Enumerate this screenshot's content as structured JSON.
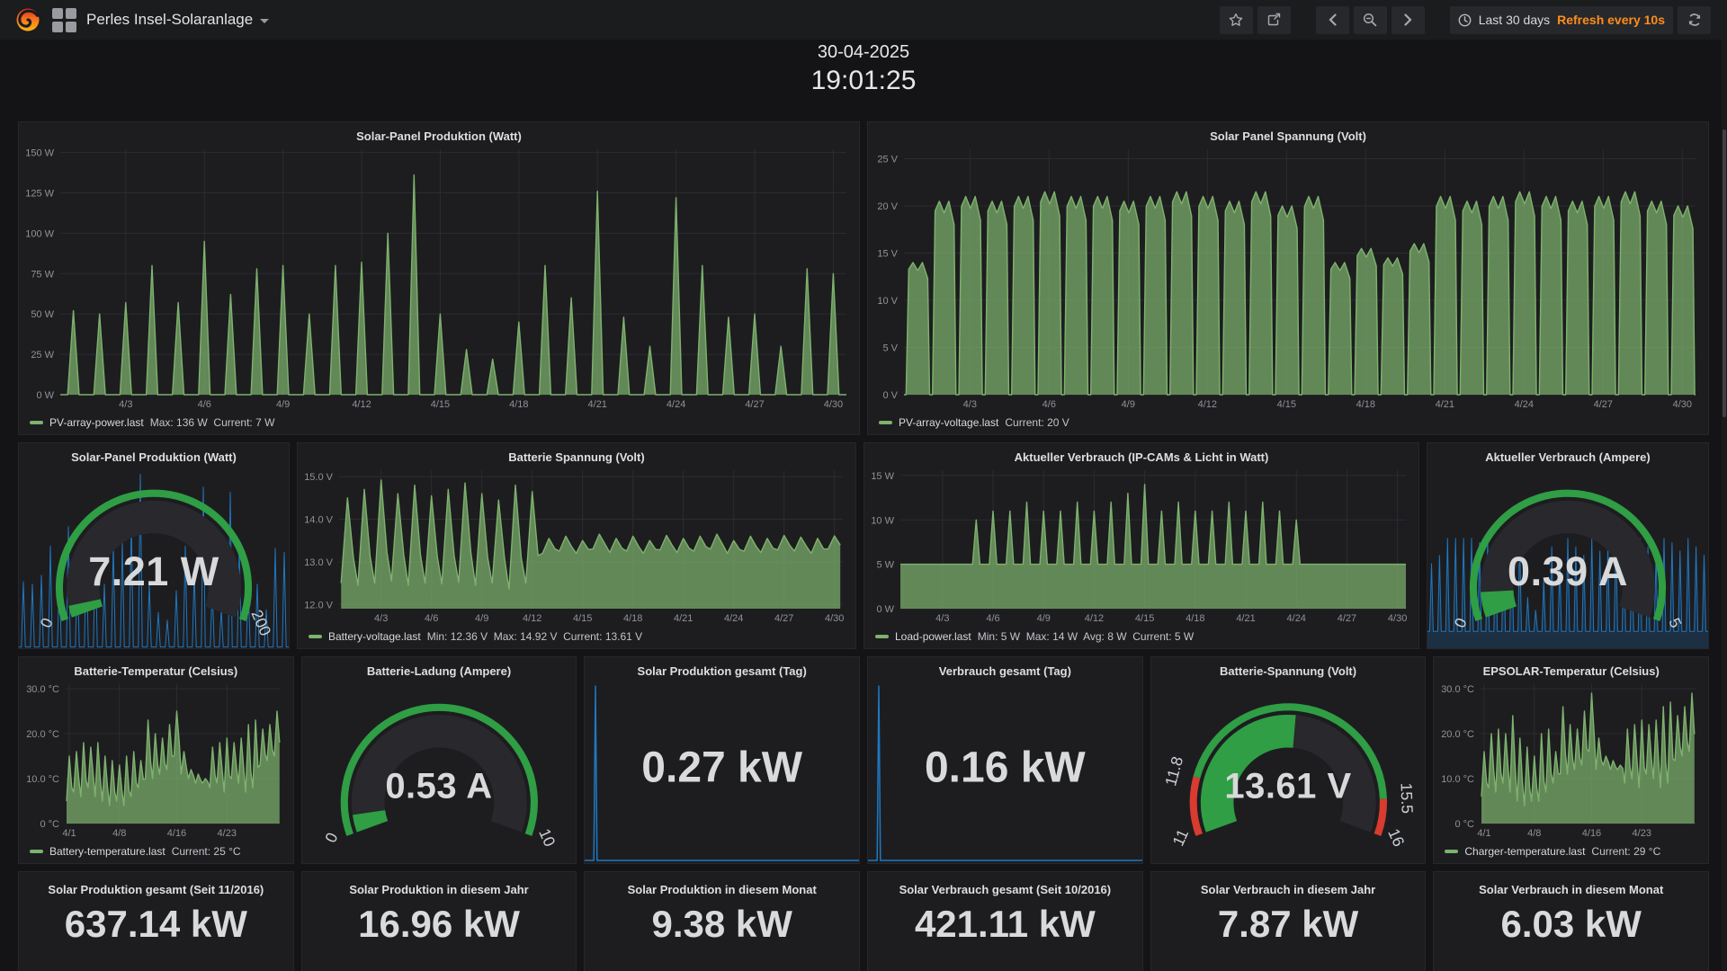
{
  "navbar": {
    "title": "Perles Insel-Solaranlage",
    "time_range": "Last 30 days",
    "refresh_text": "Refresh every 10s",
    "accent_orange": "#ff8d1e"
  },
  "clock": {
    "date": "30-04-2025",
    "time": "19:01:25"
  },
  "colors": {
    "green_line": "#7eb26d",
    "green_fill": "rgba(126,178,109,0.72)",
    "blue": "#1f78c1",
    "gauge_green": "#2f9e44",
    "threshold_red": "#d83b2f"
  },
  "chart_data": {
    "solar_power": {
      "type": "area",
      "title": "Solar-Panel Produktion (Watt)",
      "axis_width": 46,
      "xlim": [
        0,
        30
      ],
      "ylim": [
        0,
        152
      ],
      "yticks": [
        {
          "v": 0,
          "label": "0 W"
        },
        {
          "v": 25,
          "label": "25 W"
        },
        {
          "v": 50,
          "label": "50 W"
        },
        {
          "v": 75,
          "label": "75 W"
        },
        {
          "v": 100,
          "label": "100 W"
        },
        {
          "v": 125,
          "label": "125 W"
        },
        {
          "v": 150,
          "label": "150 W"
        }
      ],
      "xticks": [
        {
          "v": 2.5,
          "label": "4/3"
        },
        {
          "v": 5.5,
          "label": "4/6"
        },
        {
          "v": 8.5,
          "label": "4/9"
        },
        {
          "v": 11.5,
          "label": "4/12"
        },
        {
          "v": 14.5,
          "label": "4/15"
        },
        {
          "v": 17.5,
          "label": "4/18"
        },
        {
          "v": 20.5,
          "label": "4/21"
        },
        {
          "v": 23.5,
          "label": "4/24"
        },
        {
          "v": 26.5,
          "label": "4/27"
        },
        {
          "v": 29.5,
          "label": "4/30"
        }
      ],
      "series": [
        {
          "mode": "spikes",
          "baseline": 0,
          "color": "#7eb26d",
          "fill": "rgba(126,178,109,0.72)",
          "daily_peaks": [
            52,
            50,
            57,
            80,
            57,
            95,
            62,
            78,
            80,
            50,
            80,
            82,
            100,
            136,
            50,
            28,
            22,
            45,
            80,
            60,
            126,
            48,
            30,
            122,
            80,
            48,
            50,
            30,
            78,
            75
          ]
        }
      ],
      "legend": {
        "name": "PV-array-power.last",
        "stats": "Max: 136 W  Current: 7 W"
      }
    },
    "solar_voltage": {
      "type": "area",
      "title": "Solar Panel Spannung (Volt)",
      "axis_width": 40,
      "xlim": [
        0,
        30
      ],
      "ylim": [
        0,
        26
      ],
      "yticks": [
        {
          "v": 0,
          "label": "0 V"
        },
        {
          "v": 5,
          "label": "5 V"
        },
        {
          "v": 10,
          "label": "10 V"
        },
        {
          "v": 15,
          "label": "15 V"
        },
        {
          "v": 20,
          "label": "20 V"
        },
        {
          "v": 25,
          "label": "25 V"
        }
      ],
      "xticks": [
        {
          "v": 2.5,
          "label": "4/3"
        },
        {
          "v": 5.5,
          "label": "4/6"
        },
        {
          "v": 8.5,
          "label": "4/9"
        },
        {
          "v": 11.5,
          "label": "4/12"
        },
        {
          "v": 14.5,
          "label": "4/15"
        },
        {
          "v": 17.5,
          "label": "4/18"
        },
        {
          "v": 20.5,
          "label": "4/21"
        },
        {
          "v": 23.5,
          "label": "4/24"
        },
        {
          "v": 26.5,
          "label": "4/27"
        },
        {
          "v": 29.5,
          "label": "4/30"
        }
      ],
      "series": [
        {
          "mode": "blocks",
          "baseline": 0,
          "color": "#7eb26d",
          "fill": "rgba(126,178,109,0.72)",
          "daily_peaks": [
            14,
            20.5,
            21,
            20.5,
            21,
            21.5,
            21,
            21,
            20.5,
            21,
            21.5,
            21,
            20.5,
            21.5,
            20,
            21,
            14,
            15.5,
            14.5,
            16,
            21,
            20.5,
            21,
            21.5,
            21,
            20.5,
            21,
            21.5,
            20.5,
            20
          ]
        }
      ],
      "legend": {
        "name": "PV-array-voltage.last",
        "stats": "Current: 20 V"
      }
    },
    "battery_voltage": {
      "type": "area",
      "title": "Batterie Spannung (Volt)",
      "axis_width": 46,
      "xlim": [
        0,
        30
      ],
      "ylim": [
        11.9,
        15.15
      ],
      "yticks": [
        {
          "v": 12,
          "label": "12.0 V"
        },
        {
          "v": 13,
          "label": "13.0 V"
        },
        {
          "v": 14,
          "label": "14.0 V"
        },
        {
          "v": 15,
          "label": "15.0 V"
        }
      ],
      "xticks": [
        {
          "v": 2.5,
          "label": "4/3"
        },
        {
          "v": 5.5,
          "label": "4/6"
        },
        {
          "v": 8.5,
          "label": "4/9"
        },
        {
          "v": 11.5,
          "label": "4/12"
        },
        {
          "v": 14.5,
          "label": "4/15"
        },
        {
          "v": 17.5,
          "label": "4/18"
        },
        {
          "v": 20.5,
          "label": "4/21"
        },
        {
          "v": 23.5,
          "label": "4/24"
        },
        {
          "v": 26.5,
          "label": "4/27"
        },
        {
          "v": 29.5,
          "label": "4/30"
        }
      ],
      "series": [
        {
          "mode": "saw",
          "color": "#7eb26d",
          "fill": "rgba(126,178,109,0.72)",
          "lows": [
            12.5,
            12.45,
            12.5,
            12.55,
            12.45,
            12.5,
            12.48,
            12.52,
            12.45,
            12.5,
            12.36,
            12.5,
            13.2,
            13.25,
            13.2,
            13.3,
            13.22,
            13.25,
            13.2,
            13.28,
            13.22,
            13.25,
            13.3,
            13.2,
            13.25,
            13.22,
            13.28,
            13.25,
            13.2,
            13.3
          ],
          "peaks": [
            14.5,
            14.7,
            14.92,
            14.6,
            14.8,
            14.55,
            14.7,
            14.85,
            14.6,
            14.45,
            14.8,
            14.65,
            13.55,
            13.6,
            13.5,
            13.65,
            13.55,
            13.6,
            13.5,
            13.62,
            13.55,
            13.6,
            13.65,
            13.5,
            13.6,
            13.55,
            13.62,
            13.58,
            13.55,
            13.61
          ]
        }
      ],
      "legend": {
        "name": "Battery-voltage.last",
        "stats": "Min: 12.36 V  Max: 14.92 V  Current: 13.61 V"
      }
    },
    "load_power": {
      "type": "area",
      "title": "Aktueller Verbrauch (IP-CAMs & Licht in Watt)",
      "axis_width": 40,
      "xlim": [
        0,
        30
      ],
      "ylim": [
        0,
        15.6
      ],
      "yticks": [
        {
          "v": 0,
          "label": "0 W"
        },
        {
          "v": 5,
          "label": "5 W"
        },
        {
          "v": 10,
          "label": "10 W"
        },
        {
          "v": 15,
          "label": "15 W"
        }
      ],
      "xticks": [
        {
          "v": 2.5,
          "label": "4/3"
        },
        {
          "v": 5.5,
          "label": "4/6"
        },
        {
          "v": 8.5,
          "label": "4/9"
        },
        {
          "v": 11.5,
          "label": "4/12"
        },
        {
          "v": 14.5,
          "label": "4/15"
        },
        {
          "v": 17.5,
          "label": "4/18"
        },
        {
          "v": 20.5,
          "label": "4/21"
        },
        {
          "v": 23.5,
          "label": "4/24"
        },
        {
          "v": 26.5,
          "label": "4/27"
        },
        {
          "v": 29.5,
          "label": "4/30"
        }
      ],
      "series": [
        {
          "mode": "spikes",
          "baseline": 5,
          "color": "#7eb26d",
          "fill": "rgba(126,178,109,0.72)",
          "daily_peaks": [
            5,
            5,
            5,
            5,
            10,
            11,
            11,
            12,
            11,
            11,
            12,
            11,
            12,
            13,
            14,
            11,
            12,
            11,
            11,
            12,
            11,
            12,
            11,
            10,
            5,
            5,
            5,
            5,
            5,
            5
          ]
        }
      ],
      "legend": {
        "name": "Load-power.last",
        "stats": "Min: 5 W  Max: 14 W  Avg: 8 W  Current: 5 W"
      }
    },
    "battery_temp": {
      "type": "area",
      "title": "Batterie-Temperatur (Celsius)",
      "axis_width": 52,
      "xlim": [
        0,
        30
      ],
      "ylim": [
        0,
        31
      ],
      "yticks": [
        {
          "v": 0,
          "label": "0 °C"
        },
        {
          "v": 10,
          "label": "10.0 °C"
        },
        {
          "v": 20,
          "label": "20.0 °C"
        },
        {
          "v": 30,
          "label": "30.0 °C"
        }
      ],
      "xticks": [
        {
          "v": 0.5,
          "label": "4/1"
        },
        {
          "v": 7.5,
          "label": "4/8"
        },
        {
          "v": 15.5,
          "label": "4/16"
        },
        {
          "v": 22.5,
          "label": "4/23"
        }
      ],
      "series": [
        {
          "mode": "saw",
          "color": "#7eb26d",
          "fill": "rgba(126,178,109,0.72)",
          "lows": [
            5,
            7,
            6,
            8,
            6,
            5,
            4,
            5,
            4,
            6,
            8,
            10,
            10,
            11,
            12,
            15,
            11,
            10,
            9,
            9,
            8,
            9,
            7,
            10,
            9,
            7,
            8,
            13,
            14,
            15
          ],
          "peaks": [
            15,
            16,
            18,
            17,
            18,
            15,
            14,
            13,
            15,
            16,
            14,
            23,
            20,
            19,
            22,
            25,
            16,
            12,
            11,
            10,
            17,
            18,
            19,
            18,
            19,
            22,
            23,
            21,
            22,
            25
          ]
        }
      ],
      "legend": {
        "name": "Battery-temperature.last",
        "stats": "Current: 25 °C"
      }
    },
    "charger_temp": {
      "type": "area",
      "title": "EPSOLAR-Temperatur (Celsius)",
      "axis_width": 52,
      "xlim": [
        0,
        30
      ],
      "ylim": [
        0,
        31
      ],
      "yticks": [
        {
          "v": 0,
          "label": "0 °C"
        },
        {
          "v": 10,
          "label": "10.0 °C"
        },
        {
          "v": 20,
          "label": "20.0 °C"
        },
        {
          "v": 30,
          "label": "30.0 °C"
        }
      ],
      "xticks": [
        {
          "v": 0.5,
          "label": "4/1"
        },
        {
          "v": 7.5,
          "label": "4/8"
        },
        {
          "v": 15.5,
          "label": "4/16"
        },
        {
          "v": 22.5,
          "label": "4/23"
        }
      ],
      "series": [
        {
          "mode": "saw",
          "color": "#7eb26d",
          "fill": "rgba(126,178,109,0.72)",
          "lows": [
            6,
            8,
            7,
            9,
            7,
            5,
            4,
            5,
            5,
            7,
            9,
            11,
            11,
            12,
            13,
            16,
            12,
            13,
            12,
            12,
            9,
            10,
            8,
            11,
            10,
            8,
            9,
            14,
            15,
            16
          ],
          "peaks": [
            16,
            20,
            21,
            20,
            24,
            19,
            17,
            15,
            20,
            21,
            16,
            26,
            22,
            21,
            25,
            29,
            19,
            15,
            14,
            13,
            21,
            22,
            23,
            22,
            23,
            26,
            27,
            24,
            26,
            29
          ]
        }
      ],
      "legend": {
        "name": "Charger-temperature.last",
        "stats": "Current: 29 °C"
      }
    },
    "gauge_power": {
      "type": "gauge",
      "title": "Solar-Panel Produktion (Watt)",
      "display": "7.21 W",
      "value": 7.21,
      "min": 0,
      "max": 200,
      "min_label": "0",
      "max_label": "200",
      "spark": {
        "xlim": [
          0,
          30
        ],
        "ylim": [
          0,
          142
        ],
        "minimal": true,
        "series": [
          {
            "mode": "spikes",
            "baseline": 1,
            "color": "#1f78c1",
            "fill": "none",
            "width": 1,
            "daily_peaks": [
              52,
              50,
              57,
              80,
              57,
              95,
              62,
              78,
              80,
              50,
              80,
              82,
              100,
              136,
              50,
              28,
              22,
              45,
              80,
              60,
              126,
              48,
              30,
              122,
              80,
              48,
              50,
              30,
              78,
              75
            ]
          }
        ]
      }
    },
    "gauge_load_current": {
      "type": "gauge",
      "title": "Aktueller Verbrauch (Ampere)",
      "display": "0.39 A",
      "value": 0.39,
      "min": 0,
      "max": 5,
      "min_label": "0",
      "max_label": "5",
      "spark": {
        "xlim": [
          0,
          35
        ],
        "ylim": [
          0,
          4.3
        ],
        "minimal": true,
        "series": [
          {
            "mode": "spikes",
            "baseline": 0.4,
            "color": "#1f78c1",
            "fill": "rgba(31,120,193,0.22)",
            "width": 1,
            "daily_peaks": [
              2.0,
              2.2,
              2.6,
              2.6,
              2.6,
              2.6,
              2.5,
              2.6,
              2.5,
              2.6,
              2.4,
              2.6,
              1.2,
              0.9,
              1.6,
              2.4,
              2.0,
              2.6,
              2.4,
              2.2,
              2.6,
              2.3,
              2.4,
              2.6,
              2.3,
              2.2,
              2.6,
              2.4,
              2.2,
              2.6,
              2.5,
              2.3,
              2.6,
              2.4,
              2.2
            ]
          }
        ]
      }
    },
    "gauge_battery_current": {
      "type": "gauge",
      "title": "Batterie-Ladung (Ampere)",
      "display": "0.53 A",
      "value": 0.53,
      "min": 0,
      "max": 10,
      "min_label": "0",
      "max_label": "10"
    },
    "gauge_battery_voltage": {
      "type": "gauge",
      "title": "Batterie-Spannung (Volt)",
      "display": "13.61 V",
      "value": 13.61,
      "min": 11,
      "max": 16,
      "min_label": "11",
      "max_label": "16",
      "thresholds": [
        {
          "from": 11,
          "to": 11.8,
          "color": "#d83b2f"
        },
        {
          "from": 11.8,
          "to": 15.5,
          "color": "#2f9e44"
        },
        {
          "from": 15.5,
          "to": 16,
          "color": "#d83b2f"
        }
      ],
      "threshold_labels": [
        {
          "text": "11.8",
          "value": 11.8
        },
        {
          "text": "15.5",
          "value": 15.5
        }
      ]
    },
    "day_production": {
      "type": "stat",
      "title": "Solar Produktion gesamt (Tag)",
      "value": "0.27 kW",
      "spark": {
        "xlim": [
          0,
          30
        ],
        "ylim": [
          0,
          1
        ],
        "minimal": true,
        "series": [
          {
            "color": "#1f78c1",
            "fill": "none",
            "width": 1.5,
            "points": [
              [
                0,
                0.015
              ],
              [
                1.0,
                0.015
              ],
              [
                1.18,
                0.97
              ],
              [
                1.36,
                0.015
              ],
              [
                30,
                0.015
              ]
            ]
          }
        ]
      }
    },
    "day_consumption": {
      "type": "stat",
      "title": "Verbrauch gesamt (Tag)",
      "value": "0.16 kW",
      "spark": {
        "xlim": [
          0,
          30
        ],
        "ylim": [
          0,
          1
        ],
        "minimal": true,
        "series": [
          {
            "color": "#1f78c1",
            "fill": "none",
            "width": 1.5,
            "points": [
              [
                0,
                0.015
              ],
              [
                1.0,
                0.015
              ],
              [
                1.18,
                0.97
              ],
              [
                1.36,
                0.015
              ],
              [
                30,
                0.015
              ]
            ]
          }
        ]
      }
    }
  },
  "totals": [
    {
      "title": "Solar Produktion gesamt (Seit 11/2016)",
      "value": "637.14 kW"
    },
    {
      "title": "Solar Produktion in diesem Jahr",
      "value": "16.96 kW"
    },
    {
      "title": "Solar Produktion in diesem Monat",
      "value": "9.38 kW"
    },
    {
      "title": "Solar Verbrauch gesamt (Seit 10/2016)",
      "value": "421.11 kW"
    },
    {
      "title": "Solar Verbrauch in diesem Jahr",
      "value": "7.87 kW"
    },
    {
      "title": "Solar Verbrauch in diesem Monat",
      "value": "6.03 kW"
    }
  ]
}
